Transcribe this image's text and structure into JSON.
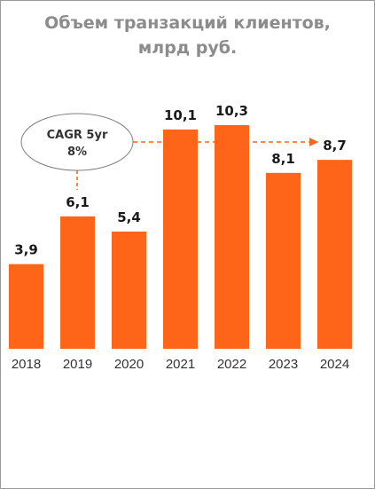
{
  "title_line1": "Объем транзакций клиентов,",
  "title_line2": "млрд руб.",
  "annotation": {
    "label_line1": "CAGR 5yr",
    "label_line2": "8%"
  },
  "colors": {
    "bar": "#ff6519",
    "title": "#8c8c8c"
  },
  "chart_data": {
    "type": "bar",
    "categories": [
      "2018",
      "2019",
      "2020",
      "2021",
      "2022",
      "2023",
      "2024"
    ],
    "values": [
      3.9,
      6.1,
      5.4,
      10.1,
      10.3,
      8.1,
      8.7
    ],
    "value_labels": [
      "3,9",
      "6,1",
      "5,4",
      "10,1",
      "10,3",
      "8,1",
      "8,7"
    ],
    "title": "Объем транзакций клиентов, млрд руб.",
    "xlabel": "",
    "ylabel": "",
    "ylim": [
      0,
      10.3
    ],
    "grid": false,
    "annotation": "CAGR 5yr 8% (2019 → 2024)"
  }
}
